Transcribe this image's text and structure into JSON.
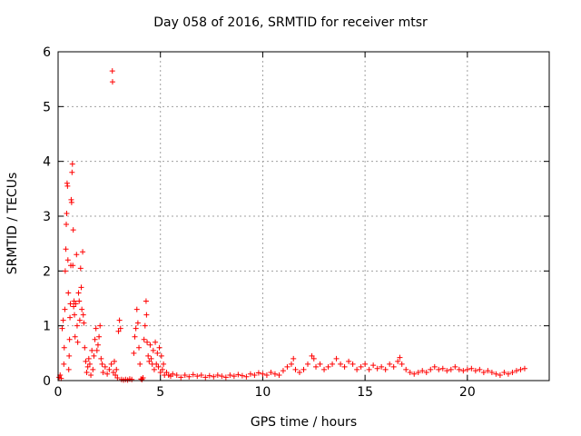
{
  "chart_data": {
    "type": "scatter",
    "title": "Day 058 of 2016, SRMTID for receiver mtsr",
    "xlabel": "GPS time / hours",
    "ylabel": "SRMTID / TECUs",
    "xlim": [
      0,
      24
    ],
    "ylim": [
      0,
      6
    ],
    "xticks": [
      0,
      5,
      10,
      15,
      20
    ],
    "yticks": [
      0,
      1,
      2,
      3,
      4,
      5,
      6
    ],
    "grid": true,
    "marker": "+",
    "series": [
      {
        "name": "SRMTID",
        "color": "#ff0000",
        "points": [
          [
            0.05,
            0.06
          ],
          [
            0.1,
            0.1
          ],
          [
            0.15,
            0.04
          ],
          [
            0.2,
            0.95
          ],
          [
            0.25,
            1.1
          ],
          [
            0.28,
            0.3
          ],
          [
            0.3,
            0.6
          ],
          [
            0.33,
            1.3
          ],
          [
            0.35,
            2.0
          ],
          [
            0.38,
            2.4
          ],
          [
            0.4,
            2.85
          ],
          [
            0.42,
            3.05
          ],
          [
            0.44,
            3.6
          ],
          [
            0.46,
            3.55
          ],
          [
            0.48,
            2.2
          ],
          [
            0.5,
            1.6
          ],
          [
            0.52,
            0.2
          ],
          [
            0.54,
            0.45
          ],
          [
            0.56,
            0.75
          ],
          [
            0.58,
            1.15
          ],
          [
            0.6,
            1.4
          ],
          [
            0.62,
            2.1
          ],
          [
            0.64,
            3.3
          ],
          [
            0.66,
            3.25
          ],
          [
            0.68,
            3.8
          ],
          [
            0.7,
            3.95
          ],
          [
            0.72,
            2.1
          ],
          [
            0.74,
            2.75
          ],
          [
            0.76,
            1.35
          ],
          [
            0.78,
            1.45
          ],
          [
            0.8,
            1.2
          ],
          [
            0.83,
            0.8
          ],
          [
            0.86,
            1.4
          ],
          [
            0.9,
            2.3
          ],
          [
            0.93,
            1.0
          ],
          [
            0.96,
            0.7
          ],
          [
            1.0,
            1.6
          ],
          [
            1.03,
            1.45
          ],
          [
            1.06,
            1.1
          ],
          [
            1.1,
            2.05
          ],
          [
            1.13,
            1.7
          ],
          [
            1.16,
            1.3
          ],
          [
            1.2,
            2.35
          ],
          [
            1.23,
            1.2
          ],
          [
            1.26,
            1.05
          ],
          [
            1.3,
            0.6
          ],
          [
            1.35,
            0.35
          ],
          [
            1.4,
            0.15
          ],
          [
            1.45,
            0.25
          ],
          [
            1.5,
            0.4
          ],
          [
            1.55,
            0.3
          ],
          [
            1.6,
            0.1
          ],
          [
            1.65,
            0.55
          ],
          [
            1.7,
            0.2
          ],
          [
            1.75,
            0.45
          ],
          [
            1.8,
            0.75
          ],
          [
            1.85,
            0.95
          ],
          [
            1.9,
            0.55
          ],
          [
            1.95,
            0.65
          ],
          [
            2.0,
            0.8
          ],
          [
            2.05,
            1.0
          ],
          [
            2.1,
            0.4
          ],
          [
            2.15,
            0.3
          ],
          [
            2.2,
            0.15
          ],
          [
            2.3,
            0.25
          ],
          [
            2.4,
            0.12
          ],
          [
            2.5,
            0.2
          ],
          [
            2.6,
            0.3
          ],
          [
            2.65,
            5.65
          ],
          [
            2.66,
            5.45
          ],
          [
            2.7,
            0.15
          ],
          [
            2.75,
            0.35
          ],
          [
            2.8,
            0.1
          ],
          [
            2.85,
            0.2
          ],
          [
            2.9,
            0.05
          ],
          [
            2.95,
            0.9
          ],
          [
            3.0,
            1.1
          ],
          [
            3.05,
            0.95
          ],
          [
            3.1,
            0.02
          ],
          [
            3.2,
            0.01
          ],
          [
            3.3,
            0.02
          ],
          [
            3.4,
            0.01
          ],
          [
            3.5,
            0.03
          ],
          [
            3.6,
            0.02
          ],
          [
            3.7,
            0.5
          ],
          [
            3.75,
            0.8
          ],
          [
            3.8,
            0.95
          ],
          [
            3.85,
            1.3
          ],
          [
            3.9,
            1.05
          ],
          [
            3.95,
            0.6
          ],
          [
            4.0,
            0.3
          ],
          [
            4.05,
            0.03
          ],
          [
            4.1,
            0.02
          ],
          [
            4.15,
            0.05
          ],
          [
            4.2,
            0.75
          ],
          [
            4.25,
            1.0
          ],
          [
            4.3,
            1.45
          ],
          [
            4.32,
            1.2
          ],
          [
            4.35,
            0.7
          ],
          [
            4.4,
            0.45
          ],
          [
            4.45,
            0.35
          ],
          [
            4.5,
            0.65
          ],
          [
            4.55,
            0.4
          ],
          [
            4.6,
            0.3
          ],
          [
            4.65,
            0.55
          ],
          [
            4.7,
            0.2
          ],
          [
            4.75,
            0.7
          ],
          [
            4.8,
            0.3
          ],
          [
            4.85,
            0.5
          ],
          [
            4.9,
            0.25
          ],
          [
            4.95,
            0.6
          ],
          [
            5.0,
            0.15
          ],
          [
            5.05,
            0.45
          ],
          [
            5.1,
            0.2
          ],
          [
            5.15,
            0.3
          ],
          [
            5.2,
            0.1
          ],
          [
            5.3,
            0.15
          ],
          [
            5.4,
            0.1
          ],
          [
            5.5,
            0.08
          ],
          [
            5.6,
            0.12
          ],
          [
            5.8,
            0.1
          ],
          [
            6.0,
            0.06
          ],
          [
            6.2,
            0.1
          ],
          [
            6.4,
            0.07
          ],
          [
            6.6,
            0.11
          ],
          [
            6.8,
            0.08
          ],
          [
            7.0,
            0.1
          ],
          [
            7.2,
            0.06
          ],
          [
            7.4,
            0.09
          ],
          [
            7.6,
            0.07
          ],
          [
            7.8,
            0.1
          ],
          [
            8.0,
            0.08
          ],
          [
            8.2,
            0.06
          ],
          [
            8.4,
            0.1
          ],
          [
            8.6,
            0.08
          ],
          [
            8.8,
            0.11
          ],
          [
            9.0,
            0.09
          ],
          [
            9.2,
            0.07
          ],
          [
            9.4,
            0.12
          ],
          [
            9.6,
            0.1
          ],
          [
            9.8,
            0.14
          ],
          [
            10.0,
            0.12
          ],
          [
            10.2,
            0.1
          ],
          [
            10.4,
            0.15
          ],
          [
            10.6,
            0.12
          ],
          [
            10.8,
            0.1
          ],
          [
            11.0,
            0.18
          ],
          [
            11.2,
            0.25
          ],
          [
            11.4,
            0.3
          ],
          [
            11.5,
            0.4
          ],
          [
            11.6,
            0.2
          ],
          [
            11.8,
            0.15
          ],
          [
            12.0,
            0.2
          ],
          [
            12.2,
            0.3
          ],
          [
            12.4,
            0.45
          ],
          [
            12.5,
            0.4
          ],
          [
            12.6,
            0.25
          ],
          [
            12.8,
            0.3
          ],
          [
            13.0,
            0.2
          ],
          [
            13.2,
            0.25
          ],
          [
            13.4,
            0.3
          ],
          [
            13.6,
            0.4
          ],
          [
            13.8,
            0.3
          ],
          [
            14.0,
            0.25
          ],
          [
            14.2,
            0.35
          ],
          [
            14.4,
            0.3
          ],
          [
            14.6,
            0.2
          ],
          [
            14.8,
            0.25
          ],
          [
            15.0,
            0.3
          ],
          [
            15.2,
            0.2
          ],
          [
            15.4,
            0.28
          ],
          [
            15.6,
            0.22
          ],
          [
            15.8,
            0.25
          ],
          [
            16.0,
            0.2
          ],
          [
            16.2,
            0.3
          ],
          [
            16.4,
            0.25
          ],
          [
            16.6,
            0.35
          ],
          [
            16.7,
            0.42
          ],
          [
            16.8,
            0.3
          ],
          [
            17.0,
            0.2
          ],
          [
            17.2,
            0.15
          ],
          [
            17.4,
            0.12
          ],
          [
            17.6,
            0.15
          ],
          [
            17.8,
            0.18
          ],
          [
            18.0,
            0.15
          ],
          [
            18.2,
            0.2
          ],
          [
            18.4,
            0.25
          ],
          [
            18.6,
            0.2
          ],
          [
            18.8,
            0.22
          ],
          [
            19.0,
            0.18
          ],
          [
            19.2,
            0.2
          ],
          [
            19.4,
            0.25
          ],
          [
            19.6,
            0.2
          ],
          [
            19.8,
            0.18
          ],
          [
            20.0,
            0.2
          ],
          [
            20.2,
            0.22
          ],
          [
            20.4,
            0.18
          ],
          [
            20.6,
            0.2
          ],
          [
            20.8,
            0.15
          ],
          [
            21.0,
            0.18
          ],
          [
            21.2,
            0.15
          ],
          [
            21.4,
            0.12
          ],
          [
            21.6,
            0.1
          ],
          [
            21.8,
            0.15
          ],
          [
            22.0,
            0.12
          ],
          [
            22.2,
            0.15
          ],
          [
            22.4,
            0.18
          ],
          [
            22.6,
            0.2
          ],
          [
            22.8,
            0.22
          ]
        ]
      }
    ]
  }
}
